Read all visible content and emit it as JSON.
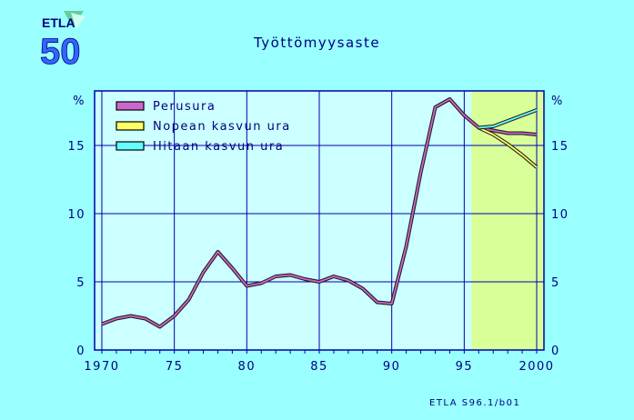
{
  "logo": {
    "text_top": "ETLA",
    "text_bottom": "50"
  },
  "footer": {
    "code": "ETLA S96.1/b01"
  },
  "chart_data": {
    "type": "line",
    "title": "Työttömyysaste",
    "ylabel_left": "%",
    "ylabel_right": "%",
    "xlim": [
      1969.5,
      2000.5
    ],
    "ylim": [
      0,
      19
    ],
    "yticks": [
      0,
      5,
      10,
      15
    ],
    "xticks": [
      1970,
      1975,
      1980,
      1985,
      1990,
      1995,
      2000
    ],
    "xtick_labels": [
      "1970",
      "75",
      "80",
      "85",
      "90",
      "95",
      "2000"
    ],
    "grid": true,
    "legend_position": "top-left",
    "forecast_region": [
      1995.5,
      2000.5
    ],
    "forecast_color": "#D9FF99",
    "series": [
      {
        "name": "Perusura",
        "color": "#CC66CC",
        "points": [
          [
            1970,
            1.9
          ],
          [
            1971,
            2.3
          ],
          [
            1972,
            2.5
          ],
          [
            1973,
            2.3
          ],
          [
            1974,
            1.7
          ],
          [
            1975,
            2.5
          ],
          [
            1976,
            3.7
          ],
          [
            1977,
            5.7
          ],
          [
            1978,
            7.2
          ],
          [
            1979,
            6.0
          ],
          [
            1980,
            4.7
          ],
          [
            1981,
            4.9
          ],
          [
            1982,
            5.4
          ],
          [
            1983,
            5.5
          ],
          [
            1984,
            5.2
          ],
          [
            1985,
            5.0
          ],
          [
            1986,
            5.4
          ],
          [
            1987,
            5.1
          ],
          [
            1988,
            4.5
          ],
          [
            1989,
            3.5
          ],
          [
            1990,
            3.4
          ],
          [
            1991,
            7.6
          ],
          [
            1992,
            13.0
          ],
          [
            1993,
            17.8
          ],
          [
            1994,
            18.4
          ],
          [
            1995,
            17.2
          ],
          [
            1996,
            16.3
          ],
          [
            1997,
            16.1
          ],
          [
            1998,
            15.9
          ],
          [
            1999,
            15.9
          ],
          [
            2000,
            15.8
          ]
        ]
      },
      {
        "name": "Nopean kasvun ura",
        "color": "#FFFF66",
        "points": [
          [
            1996,
            16.3
          ],
          [
            1997,
            15.8
          ],
          [
            1998,
            15.1
          ],
          [
            1999,
            14.3
          ],
          [
            2000,
            13.4
          ]
        ]
      },
      {
        "name": "Hitaan kasvun ura",
        "color": "#66FFFF",
        "points": [
          [
            1996,
            16.3
          ],
          [
            1997,
            16.4
          ],
          [
            1998,
            16.8
          ],
          [
            1999,
            17.2
          ],
          [
            2000,
            17.6
          ]
        ]
      }
    ]
  }
}
